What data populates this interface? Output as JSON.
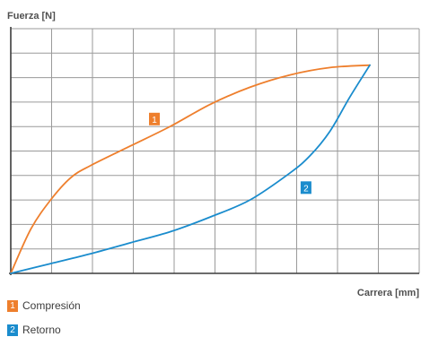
{
  "chart_data": {
    "type": "line",
    "title": "",
    "ylabel": "Fuerza [N]",
    "xlabel": "Carrera [mm]",
    "xlim": [
      0,
      9
    ],
    "ylim": [
      0,
      9
    ],
    "grid": true,
    "legend_position": "bottom-left",
    "series": [
      {
        "name": "Compresión",
        "marker": "1",
        "color": "#ee7f2d",
        "x": [
          0,
          0.5,
          1,
          1.5,
          2,
          3,
          4,
          5,
          6,
          7,
          8,
          9
        ],
        "y": [
          0,
          1.8,
          3.0,
          3.9,
          4.4,
          5.2,
          6.0,
          6.9,
          7.6,
          8.1,
          8.4,
          8.5
        ]
      },
      {
        "name": "Retorno",
        "marker": "2",
        "color": "#1a8ccd",
        "x": [
          0,
          1,
          2,
          3,
          4,
          5,
          6,
          7,
          7.5,
          8,
          8.5,
          9
        ],
        "y": [
          0,
          0.4,
          0.8,
          1.25,
          1.7,
          2.3,
          3.0,
          4.1,
          4.8,
          5.8,
          7.2,
          8.5
        ]
      }
    ],
    "annotations": [
      {
        "label": "1",
        "series": 0,
        "x": 3.6,
        "y": 6.3
      },
      {
        "label": "2",
        "series": 1,
        "x": 7.4,
        "y": 3.5
      }
    ]
  }
}
